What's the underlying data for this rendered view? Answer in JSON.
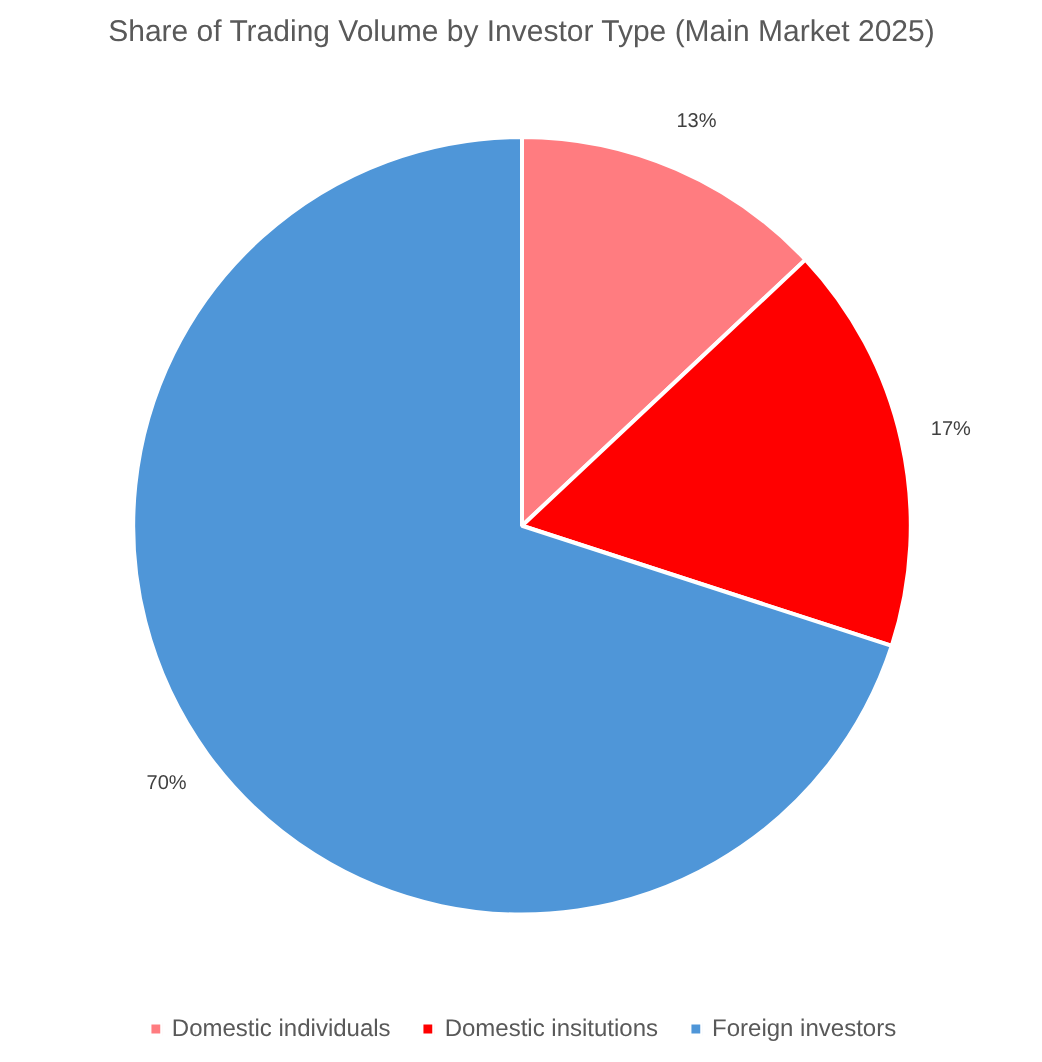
{
  "chart_data": {
    "type": "pie",
    "title": "Share of Trading Volume by Investor Type (Main Market 2025)",
    "categories": [
      "Domestic individuals",
      "Domestic insitutions",
      "Foreign investors"
    ],
    "values": [
      13,
      17,
      70
    ],
    "colors": [
      "#ff7c80",
      "#ff0000",
      "#4f96d8"
    ],
    "value_labels": [
      "13%",
      "17%",
      "70%"
    ],
    "legend": "bottom"
  }
}
